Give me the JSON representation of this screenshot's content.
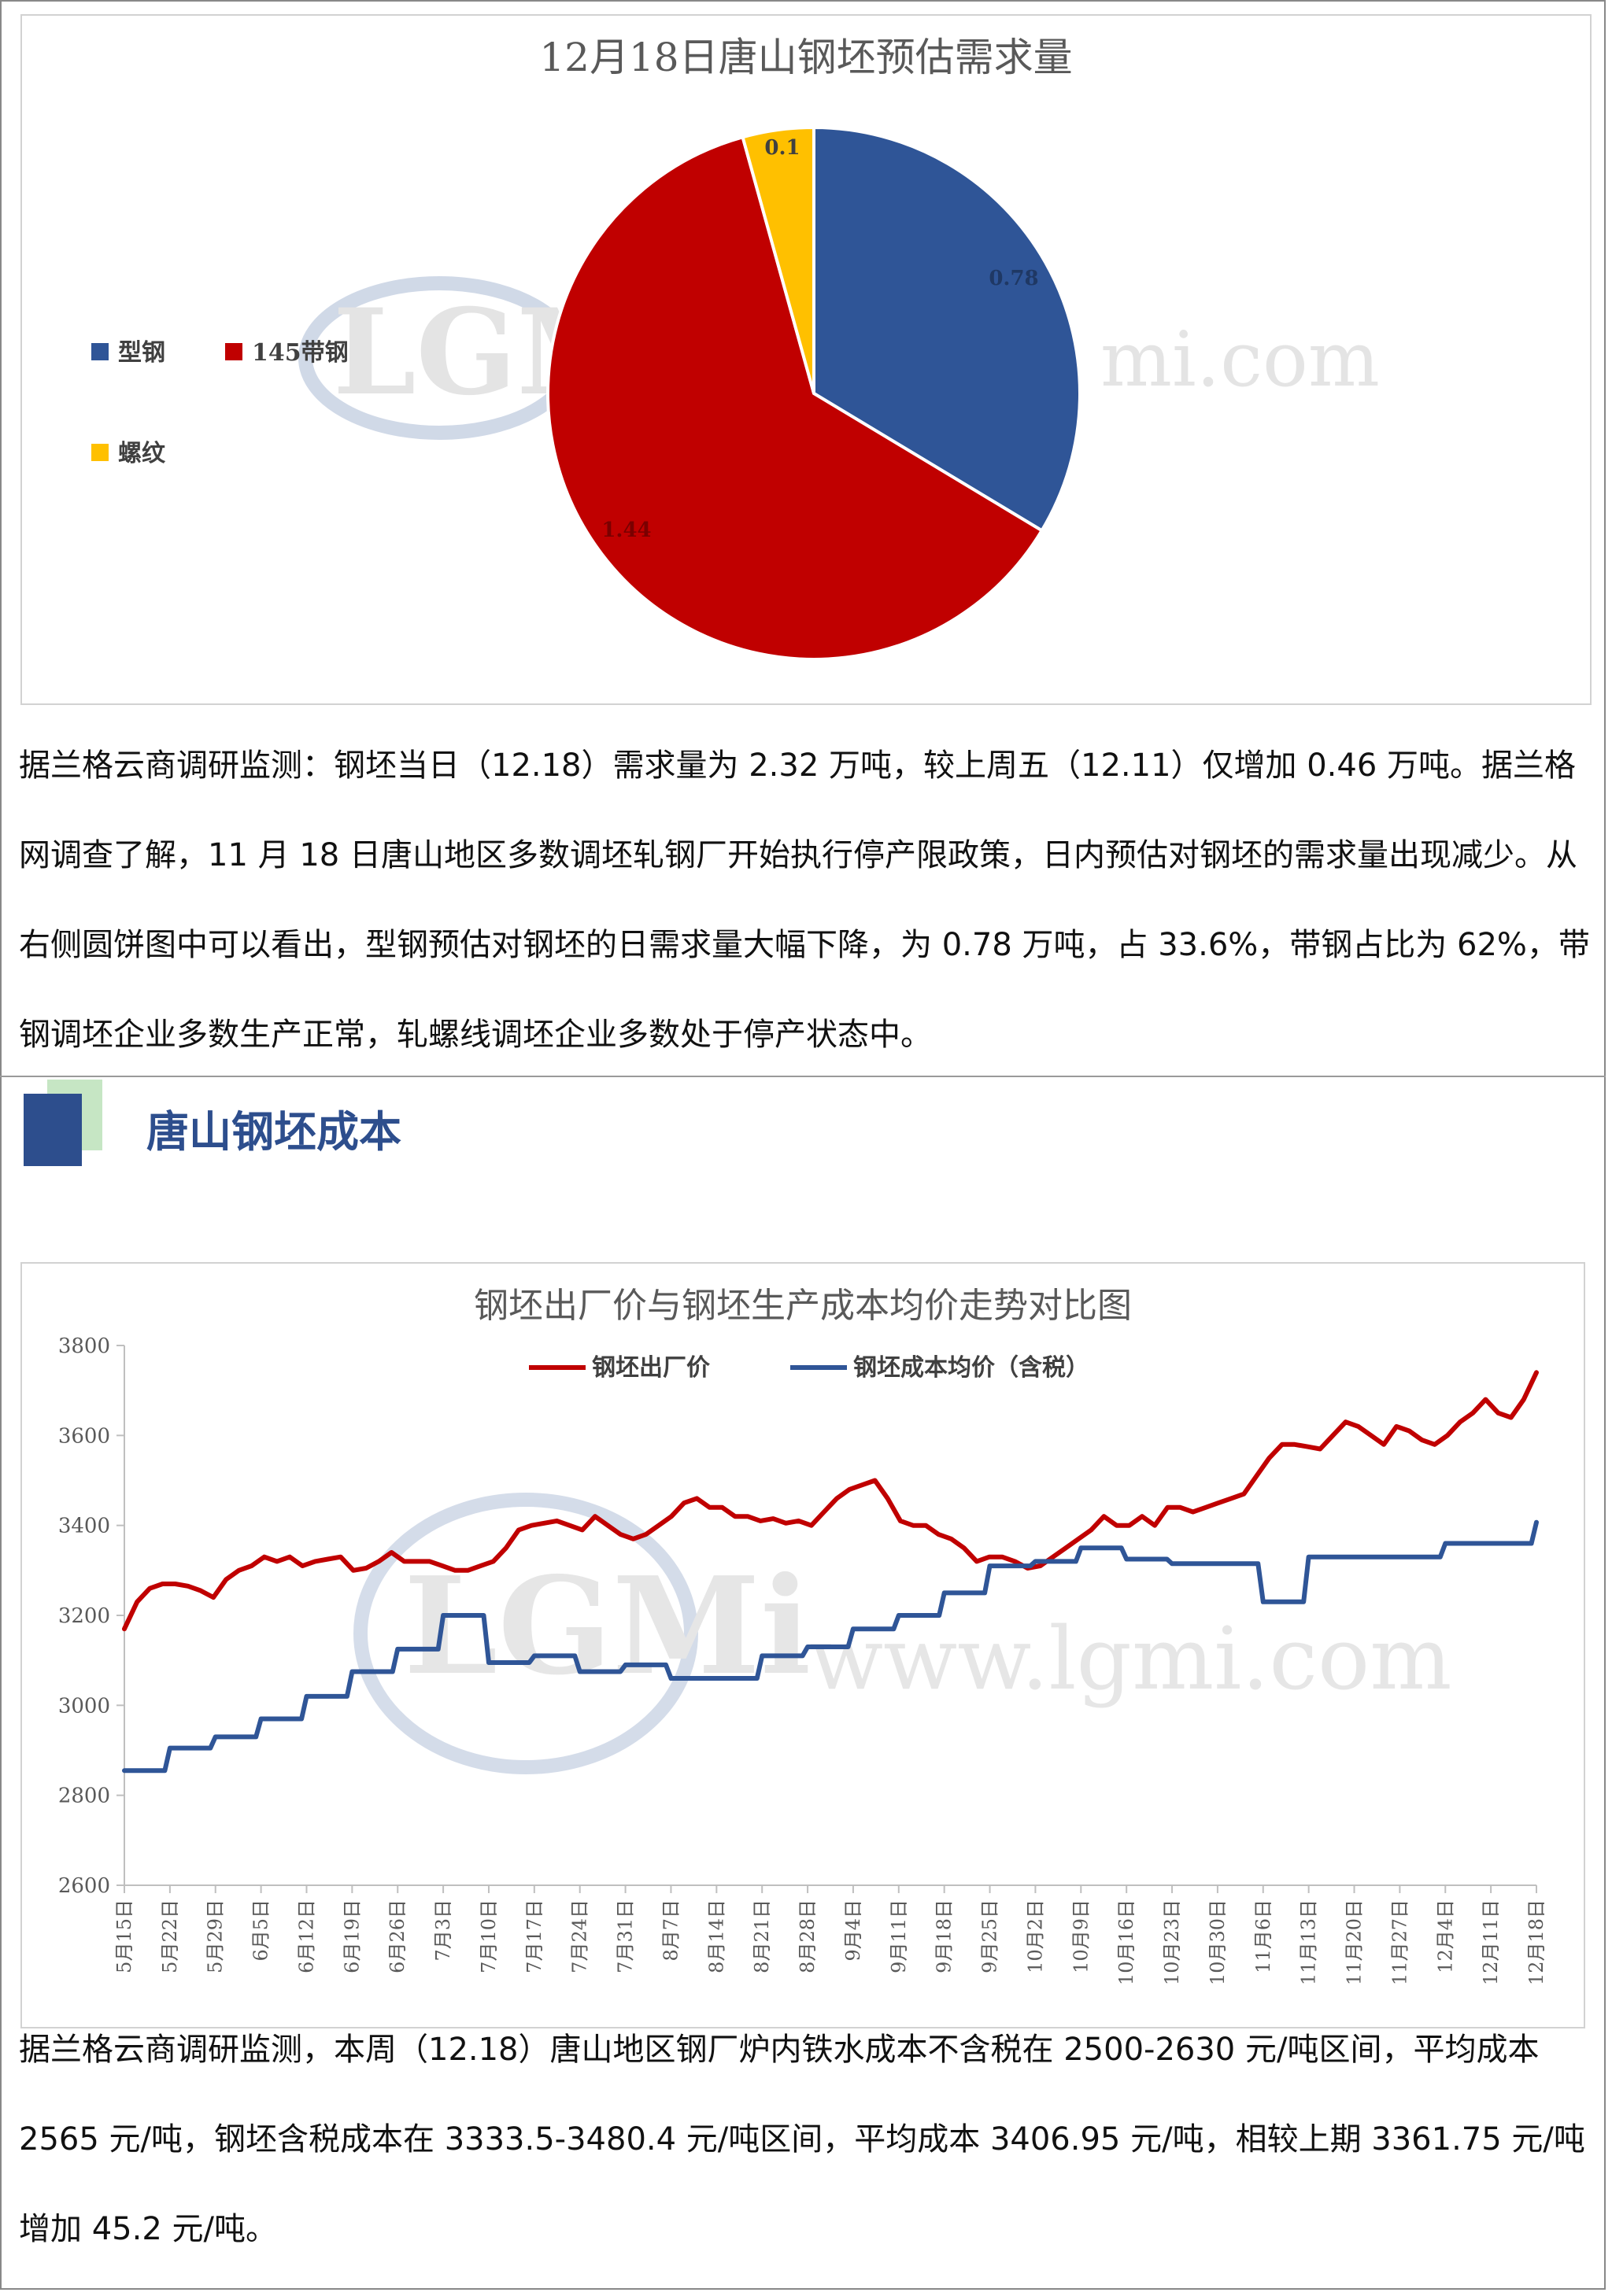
{
  "pie_chart": {
    "chart_data": {
      "type": "pie",
      "title": "12月18日唐山钢坯预估需求量",
      "categories": [
        "型钢",
        "145带钢",
        "螺纹"
      ],
      "values": [
        0.78,
        1.44,
        0.1
      ],
      "data_labels": [
        "0.78",
        "1.44",
        "0.1"
      ],
      "colors": [
        "#2f5597",
        "#c00000",
        "#ffc000"
      ],
      "legend": "left"
    }
  },
  "paragraph1": "据兰格云商调研监测：钢坯当日（12.18）需求量为 2.32 万吨，较上周五（12.11）仅增加 0.46 万吨。据兰格网调查了解，11 月 18 日唐山地区多数调坯轧钢厂开始执行停产限政策，日内预估对钢坯的需求量出现减少。从右侧圆饼图中可以看出，型钢预估对钢坯的日需求量大幅下降，为 0.78 万吨，占 33.6%，带钢占比为 62%，带钢调坯企业多数生产正常，轧螺线调坯企业多数处于停产状态中。",
  "section_title": "唐山钢坯成本",
  "watermark": {
    "logo": "LGMi",
    "url_top": "mi.com",
    "url_bottom": "www.lgmi.com"
  },
  "line_chart": {
    "chart_data": {
      "type": "line",
      "title": "钢坯出厂价与钢坯生产成本均价走势对比图",
      "ylim": [
        2600,
        3800
      ],
      "yticks": [
        "2600",
        "2800",
        "3000",
        "3200",
        "3400",
        "3600",
        "3800"
      ],
      "x_labels": [
        "5月15日",
        "5月22日",
        "5月29日",
        "6月5日",
        "6月12日",
        "6月19日",
        "6月26日",
        "7月3日",
        "7月10日",
        "7月17日",
        "7月24日",
        "7月31日",
        "8月7日",
        "8月14日",
        "8月21日",
        "8月28日",
        "9月4日",
        "9月11日",
        "9月18日",
        "9月25日",
        "10月2日",
        "10月9日",
        "10月16日",
        "10月23日",
        "10月30日",
        "11月6日",
        "11月13日",
        "11月20日",
        "11月27日",
        "12月4日",
        "12月11日",
        "12月18日"
      ],
      "legend": "top",
      "series": [
        {
          "name": "钢坯出厂价",
          "color": "#c00000",
          "values": [
            3170,
            3230,
            3260,
            3270,
            3270,
            3265,
            3255,
            3240,
            3280,
            3300,
            3310,
            3330,
            3320,
            3330,
            3310,
            3320,
            3325,
            3330,
            3300,
            3305,
            3320,
            3340,
            3320,
            3320,
            3320,
            3310,
            3300,
            3300,
            3310,
            3320,
            3350,
            3390,
            3400,
            3405,
            3410,
            3400,
            3390,
            3420,
            3400,
            3380,
            3370,
            3380,
            3400,
            3420,
            3450,
            3460,
            3440,
            3440,
            3420,
            3420,
            3410,
            3415,
            3405,
            3410,
            3400,
            3430,
            3460,
            3480,
            3490,
            3500,
            3460,
            3410,
            3400,
            3400,
            3380,
            3370,
            3350,
            3320,
            3330,
            3330,
            3320,
            3305,
            3310,
            3330,
            3350,
            3370,
            3390,
            3420,
            3400,
            3400,
            3420,
            3400,
            3440,
            3440,
            3430,
            3440,
            3450,
            3460,
            3470,
            3510,
            3550,
            3580,
            3580,
            3575,
            3570,
            3600,
            3630,
            3620,
            3600,
            3580,
            3620,
            3610,
            3590,
            3580,
            3600,
            3630,
            3650,
            3680,
            3650,
            3640,
            3680,
            3740
          ]
        },
        {
          "name": "钢坯成本均价（含税）",
          "color": "#2f5597",
          "values": [
            2855,
            2855,
            2855,
            2855,
            2855,
            2855,
            2855,
            2855,
            2855,
            2905,
            2905,
            2905,
            2905,
            2905,
            2905,
            2905,
            2905,
            2905,
            2930,
            2930,
            2930,
            2930,
            2930,
            2930,
            2930,
            2930,
            2930,
            2970,
            2970,
            2970,
            2970,
            2970,
            2970,
            2970,
            2970,
            2970,
            3020,
            3020,
            3020,
            3020,
            3020,
            3020,
            3020,
            3020,
            3020,
            3075,
            3075,
            3075,
            3075,
            3075,
            3075,
            3075,
            3075,
            3075,
            3125,
            3125,
            3125,
            3125,
            3125,
            3125,
            3125,
            3125,
            3125,
            3200,
            3200,
            3200,
            3200,
            3200,
            3200,
            3200,
            3200,
            3200,
            3095,
            3095,
            3095,
            3095,
            3095,
            3095,
            3095,
            3095,
            3095,
            3110,
            3110,
            3110,
            3110,
            3110,
            3110,
            3110,
            3110,
            3110,
            3075,
            3075,
            3075,
            3075,
            3075,
            3075,
            3075,
            3075,
            3075,
            3090,
            3090,
            3090,
            3090,
            3090,
            3090,
            3090,
            3090,
            3090,
            3060,
            3060,
            3060,
            3060,
            3060,
            3060,
            3060,
            3060,
            3060,
            3060,
            3060,
            3060,
            3060,
            3060,
            3060,
            3060,
            3060,
            3060,
            3110,
            3110,
            3110,
            3110,
            3110,
            3110,
            3110,
            3110,
            3110,
            3130,
            3130,
            3130,
            3130,
            3130,
            3130,
            3130,
            3130,
            3130,
            3170,
            3170,
            3170,
            3170,
            3170,
            3170,
            3170,
            3170,
            3170,
            3200,
            3200,
            3200,
            3200,
            3200,
            3200,
            3200,
            3200,
            3200,
            3250,
            3250,
            3250,
            3250,
            3250,
            3250,
            3250,
            3250,
            3250,
            3310,
            3310,
            3310,
            3310,
            3310,
            3310,
            3310,
            3310,
            3310,
            3320,
            3320,
            3320,
            3320,
            3320,
            3320,
            3320,
            3320,
            3320,
            3350,
            3350,
            3350,
            3350,
            3350,
            3350,
            3350,
            3350,
            3350,
            3325,
            3325,
            3325,
            3325,
            3325,
            3325,
            3325,
            3325,
            3325,
            3315,
            3315,
            3315,
            3315,
            3315,
            3315,
            3315,
            3315,
            3315,
            3315,
            3315,
            3315,
            3315,
            3315,
            3315,
            3315,
            3315,
            3315,
            3230,
            3230,
            3230,
            3230,
            3230,
            3230,
            3230,
            3230,
            3230,
            3330,
            3330,
            3330,
            3330,
            3330,
            3330,
            3330,
            3330,
            3330,
            3330,
            3330,
            3330,
            3330,
            3330,
            3330,
            3330,
            3330,
            3330,
            3330,
            3330,
            3330,
            3330,
            3330,
            3330,
            3330,
            3330,
            3330,
            3360,
            3360,
            3360,
            3360,
            3360,
            3360,
            3360,
            3360,
            3360,
            3360,
            3360,
            3360,
            3360,
            3360,
            3360,
            3360,
            3360,
            3360,
            3407
          ]
        }
      ]
    }
  },
  "paragraph2": "据兰格云商调研监测，本周（12.18）唐山地区钢厂炉内铁水成本不含税在 2500-2630 元/吨区间，平均成本 2565 元/吨，钢坯含税成本在 3333.5-3480.4 元/吨区间，平均成本 3406.95 元/吨，相较上期 3361.75 元/吨增加 45.2 元/吨。"
}
